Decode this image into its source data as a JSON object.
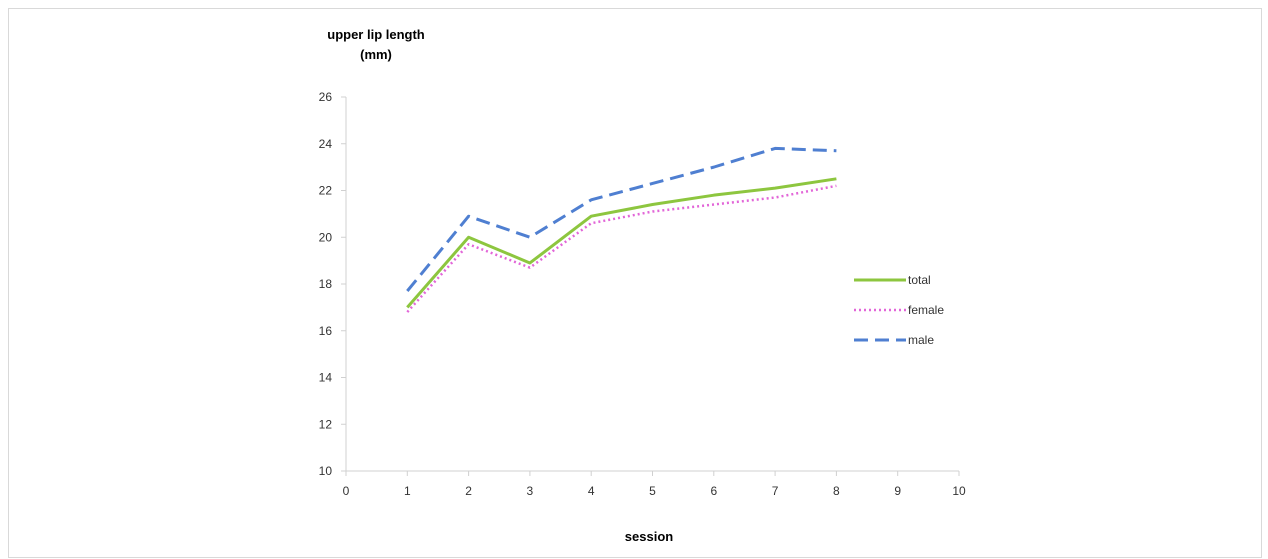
{
  "chart_data": {
    "type": "line",
    "title": "",
    "ylabel_line1": "upper lip length",
    "ylabel_line2": "(mm)",
    "xlabel": "session",
    "xlim": [
      0,
      10
    ],
    "ylim": [
      10,
      26
    ],
    "xticks": [
      0,
      1,
      2,
      3,
      4,
      5,
      6,
      7,
      8,
      9,
      10
    ],
    "yticks": [
      10,
      12,
      14,
      16,
      18,
      20,
      22,
      24,
      26
    ],
    "grid": false,
    "legend_position": "right",
    "x": [
      1,
      2,
      3,
      4,
      5,
      6,
      7,
      8
    ],
    "series": [
      {
        "name": "total",
        "color": "#8dc63f",
        "style": "solid",
        "values": [
          17.0,
          20.0,
          18.9,
          20.9,
          21.4,
          21.8,
          22.1,
          22.5
        ]
      },
      {
        "name": "female",
        "color": "#e266d8",
        "style": "dotted",
        "values": [
          16.8,
          19.7,
          18.7,
          20.6,
          21.1,
          21.4,
          21.7,
          22.2
        ]
      },
      {
        "name": "male",
        "color": "#4f7fd1",
        "style": "dashed",
        "values": [
          17.7,
          20.9,
          20.0,
          21.6,
          22.3,
          23.0,
          23.8,
          23.7
        ]
      }
    ]
  }
}
